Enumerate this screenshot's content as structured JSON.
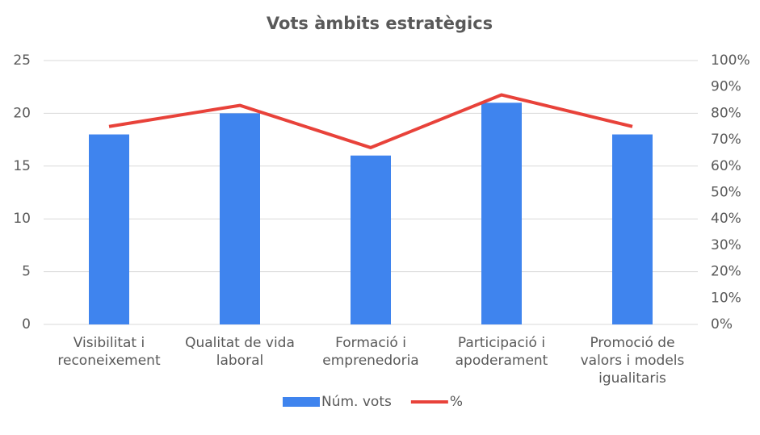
{
  "chart_data": {
    "type": "bar",
    "title": "Vots àmbits estratègics",
    "categories": [
      "Visibilitat i reconeixement",
      "Qualitat de vida laboral",
      "Formació i emprenedoria",
      "Participació i apoderament",
      "Promoció de valors i models igualitaris"
    ],
    "series": [
      {
        "name": "Núm. vots",
        "type": "bar",
        "color": "#3f84ee",
        "values": [
          18,
          20,
          16,
          21,
          18
        ]
      },
      {
        "name": "%",
        "type": "line",
        "color": "#e8423a",
        "axis": "y2",
        "values": [
          75,
          83,
          67,
          87,
          75
        ]
      }
    ],
    "ylim": [
      0,
      25
    ],
    "yticks": [
      0,
      5,
      10,
      15,
      20,
      25
    ],
    "y2lim": [
      0,
      100
    ],
    "y2ticks": [
      {
        "value": 0,
        "label": "0%"
      },
      {
        "value": 10,
        "label": "10%"
      },
      {
        "value": 20,
        "label": "20%"
      },
      {
        "value": 30,
        "label": "30%"
      },
      {
        "value": 40,
        "label": "40%"
      },
      {
        "value": 50,
        "label": "50%"
      },
      {
        "value": 60,
        "label": "60%"
      },
      {
        "value": 70,
        "label": "70%"
      },
      {
        "value": 80,
        "label": "80%"
      },
      {
        "value": 90,
        "label": "90%"
      },
      {
        "value": 100,
        "label": "100%"
      }
    ],
    "grid": true,
    "legend": "bottom"
  }
}
